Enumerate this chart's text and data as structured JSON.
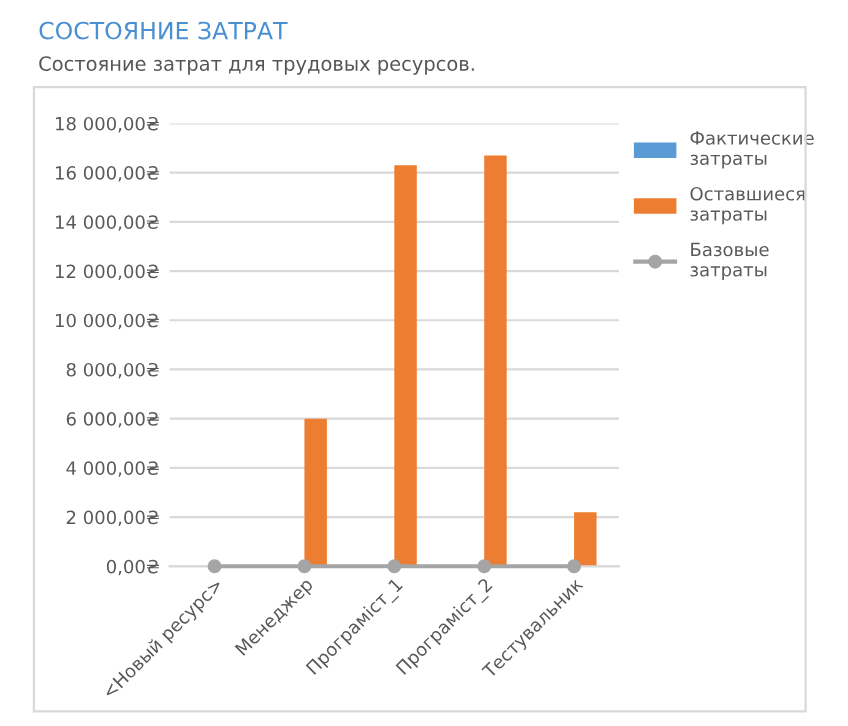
{
  "chart_data": {
    "type": "bar",
    "title": "СОСТОЯНИЕ ЗАТРАТ",
    "subtitle": "Состояние затрат для трудовых ресурсов.",
    "categories": [
      "<Новый ресурс>",
      "Менеджер",
      "Програміст_1",
      "Програміст_2",
      "Тестувальник"
    ],
    "series": [
      {
        "name": "Фактические затраты",
        "color": "#5b9bd5",
        "values": [
          0,
          0,
          0,
          0,
          0
        ]
      },
      {
        "name": "Оставшиеся затраты",
        "color": "#ed7d31",
        "values": [
          0,
          6000,
          16300,
          16700,
          2200
        ]
      },
      {
        "name": "Базовые затраты",
        "color": "#a5a5a5",
        "type": "line",
        "marker": "circle",
        "values": [
          0,
          0,
          0,
          0,
          0
        ]
      }
    ],
    "ylim": [
      0,
      18000
    ],
    "yticks": [
      {
        "value": 0,
        "label": "0,00₴"
      },
      {
        "value": 2000,
        "label": "2 000,00₴"
      },
      {
        "value": 4000,
        "label": "4 000,00₴"
      },
      {
        "value": 6000,
        "label": "6 000,00₴"
      },
      {
        "value": 8000,
        "label": "8 000,00₴"
      },
      {
        "value": 10000,
        "label": "10 000,00₴"
      },
      {
        "value": 12000,
        "label": "12 000,00₴"
      },
      {
        "value": 14000,
        "label": "14 000,00₴"
      },
      {
        "value": 16000,
        "label": "16 000,00₴"
      },
      {
        "value": 18000,
        "label": "18 000,00₴"
      }
    ],
    "grid": "y",
    "legend": "right"
  }
}
